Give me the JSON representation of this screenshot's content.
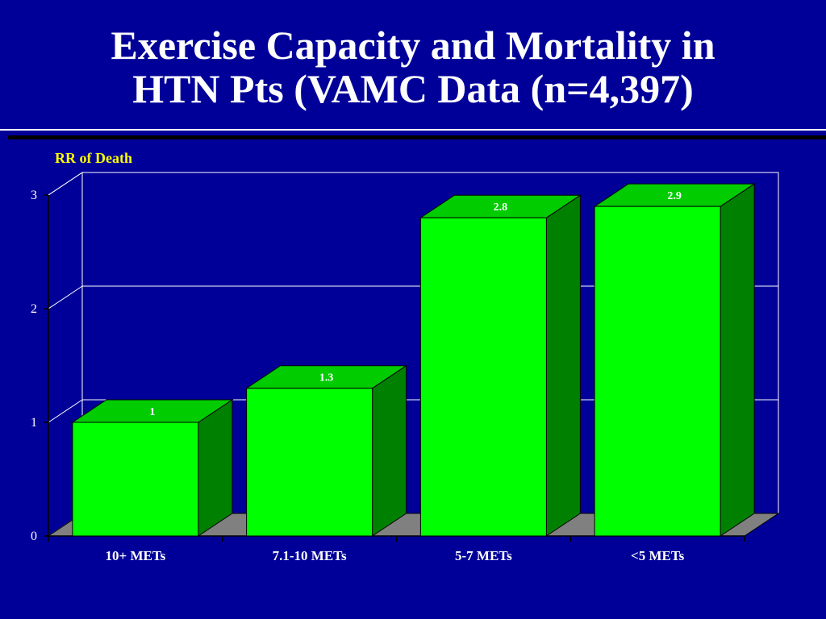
{
  "slide": {
    "title_line1": "Exercise Capacity and Mortality in",
    "title_line2": "HTN Pts (VAMC Data (n=4,397)"
  },
  "chart_data": {
    "type": "bar",
    "ylabel": "RR of Death",
    "xlabel": "",
    "categories": [
      "10+ METs",
      "7.1-10 METs",
      "5-7 METs",
      "<5 METs"
    ],
    "values": [
      1,
      1.3,
      2.8,
      2.9
    ],
    "data_labels": [
      "1",
      "1.3",
      "2.8",
      "2.9"
    ],
    "yticks": [
      "0",
      "1",
      "2",
      "3"
    ],
    "ylim": [
      0,
      3
    ],
    "grid": true,
    "legend": "none",
    "style": "3d",
    "colors": {
      "bar_front": "#00ff00",
      "bar_top": "#00cc00",
      "bar_side": "#008000",
      "floor": "#808080",
      "background": "#000099",
      "title": "#ffffff",
      "axis_title": "#ffff00"
    }
  }
}
